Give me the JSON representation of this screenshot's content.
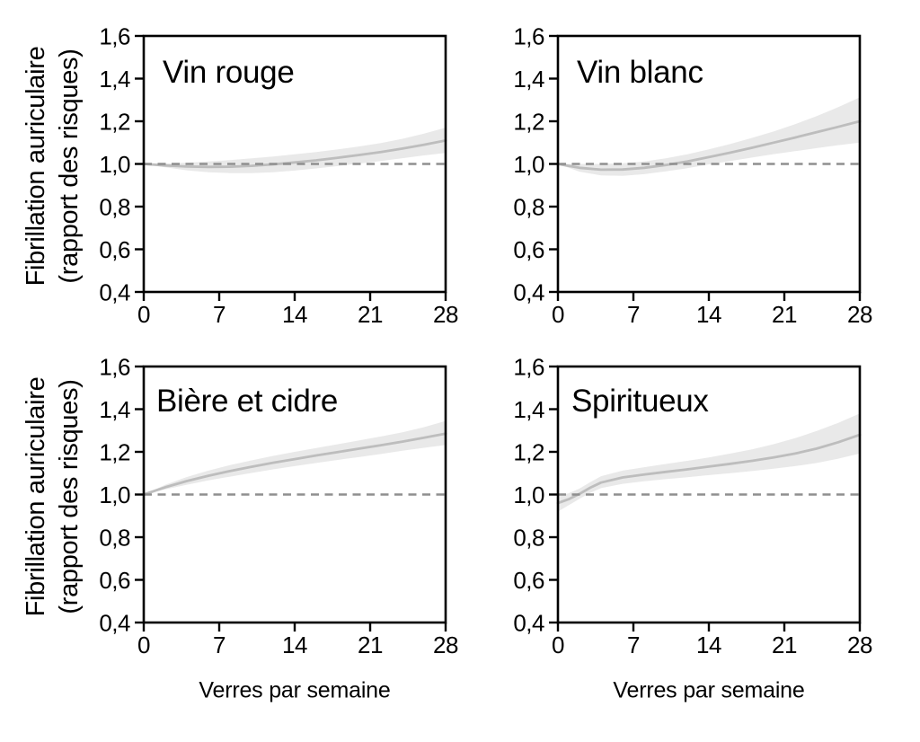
{
  "figure": {
    "y_axis_label_line1": "Fibrillation auriculaire",
    "y_axis_label_line2": "(rapport des risques)",
    "x_axis_label": "Verres par semaine",
    "colors": {
      "band": "#e9e9e9",
      "curve": "#bdbdbd",
      "reference_line": "#8f8f8f",
      "axis": "#000000",
      "text": "#000000",
      "background": "#ffffff"
    }
  },
  "chart_data": [
    {
      "type": "line",
      "title": "Vin rouge",
      "xlabel": "Verres par semaine",
      "ylabel": "Fibrillation auriculaire (rapport des risques)",
      "xlim": [
        0,
        28
      ],
      "ylim": [
        0.4,
        1.6
      ],
      "xticks": [
        0,
        7,
        14,
        21,
        28
      ],
      "xtick_labels": [
        "0",
        "7",
        "14",
        "21",
        "28"
      ],
      "yticks": [
        0.4,
        0.6,
        0.8,
        1.0,
        1.2,
        1.4,
        1.6
      ],
      "ytick_labels": [
        "0,4",
        "0,6",
        "0,8",
        "1,0",
        "1,2",
        "1,4",
        "1,6"
      ],
      "reference_line_y": 1.0,
      "x": [
        0,
        2,
        4,
        6,
        8,
        10,
        12,
        14,
        16,
        18,
        20,
        22,
        24,
        26,
        28
      ],
      "hazard_ratio": [
        1.0,
        0.993,
        0.988,
        0.986,
        0.987,
        0.991,
        0.998,
        1.007,
        1.017,
        1.029,
        1.042,
        1.056,
        1.072,
        1.09,
        1.11
      ],
      "ci_upper": [
        1.0,
        1.002,
        1.006,
        1.012,
        1.018,
        1.026,
        1.035,
        1.045,
        1.056,
        1.068,
        1.082,
        1.098,
        1.118,
        1.142,
        1.17
      ],
      "ci_lower": [
        1.0,
        0.984,
        0.97,
        0.961,
        0.957,
        0.957,
        0.961,
        0.969,
        0.979,
        0.99,
        1.002,
        1.014,
        1.027,
        1.04,
        1.052
      ]
    },
    {
      "type": "line",
      "title": "Vin blanc",
      "xlabel": "Verres par semaine",
      "ylabel": "Fibrillation auriculaire (rapport des risques)",
      "xlim": [
        0,
        28
      ],
      "ylim": [
        0.4,
        1.6
      ],
      "xticks": [
        0,
        7,
        14,
        21,
        28
      ],
      "xtick_labels": [
        "0",
        "7",
        "14",
        "21",
        "28"
      ],
      "yticks": [
        0.4,
        0.6,
        0.8,
        1.0,
        1.2,
        1.4,
        1.6
      ],
      "ytick_labels": [
        "0,4",
        "0,6",
        "0,8",
        "1,0",
        "1,2",
        "1,4",
        "1,6"
      ],
      "reference_line_y": 1.0,
      "x": [
        0,
        2,
        4,
        6,
        8,
        10,
        12,
        14,
        16,
        18,
        20,
        22,
        24,
        26,
        28
      ],
      "hazard_ratio": [
        1.0,
        0.982,
        0.973,
        0.974,
        0.982,
        0.995,
        1.012,
        1.032,
        1.053,
        1.076,
        1.1,
        1.124,
        1.149,
        1.174,
        1.2
      ],
      "ci_upper": [
        1.0,
        1.0,
        1.0,
        1.003,
        1.012,
        1.026,
        1.045,
        1.068,
        1.094,
        1.122,
        1.152,
        1.186,
        1.224,
        1.266,
        1.312
      ],
      "ci_lower": [
        1.0,
        0.964,
        0.946,
        0.944,
        0.952,
        0.965,
        0.98,
        0.998,
        1.014,
        1.03,
        1.046,
        1.06,
        1.074,
        1.088,
        1.1
      ]
    },
    {
      "type": "line",
      "title": "Bière et cidre",
      "xlabel": "Verres par semaine",
      "ylabel": "Fibrillation auriculaire (rapport des risques)",
      "xlim": [
        0,
        28
      ],
      "ylim": [
        0.4,
        1.6
      ],
      "xticks": [
        0,
        7,
        14,
        21,
        28
      ],
      "xtick_labels": [
        "0",
        "7",
        "14",
        "21",
        "28"
      ],
      "yticks": [
        0.4,
        0.6,
        0.8,
        1.0,
        1.2,
        1.4,
        1.6
      ],
      "ytick_labels": [
        "0,4",
        "0,6",
        "0,8",
        "1,0",
        "1,2",
        "1,4",
        "1,6"
      ],
      "reference_line_y": 1.0,
      "x": [
        0,
        2,
        4,
        6,
        8,
        10,
        12,
        14,
        16,
        18,
        20,
        22,
        24,
        26,
        28
      ],
      "hazard_ratio": [
        1.0,
        1.034,
        1.063,
        1.088,
        1.11,
        1.13,
        1.149,
        1.166,
        1.183,
        1.199,
        1.215,
        1.231,
        1.248,
        1.266,
        1.285
      ],
      "ci_upper": [
        1.0,
        1.046,
        1.082,
        1.112,
        1.138,
        1.16,
        1.181,
        1.2,
        1.218,
        1.236,
        1.254,
        1.272,
        1.292,
        1.316,
        1.345
      ],
      "ci_lower": [
        1.0,
        1.024,
        1.046,
        1.066,
        1.084,
        1.101,
        1.118,
        1.133,
        1.148,
        1.162,
        1.176,
        1.19,
        1.205,
        1.219,
        1.232
      ]
    },
    {
      "type": "line",
      "title": "Spiritueux",
      "xlabel": "Verres par semaine",
      "ylabel": "Fibrillation auriculaire (rapport des risques)",
      "xlim": [
        0,
        28
      ],
      "ylim": [
        0.4,
        1.6
      ],
      "xticks": [
        0,
        7,
        14,
        21,
        28
      ],
      "xtick_labels": [
        "0",
        "7",
        "14",
        "21",
        "28"
      ],
      "yticks": [
        0.4,
        0.6,
        0.8,
        1.0,
        1.2,
        1.4,
        1.6
      ],
      "ytick_labels": [
        "0,4",
        "0,6",
        "0,8",
        "1,0",
        "1,2",
        "1,4",
        "1,6"
      ],
      "reference_line_y": 1.0,
      "x": [
        0,
        1,
        2,
        3,
        4,
        6,
        8,
        10,
        12,
        14,
        16,
        18,
        20,
        22,
        24,
        26,
        28
      ],
      "hazard_ratio": [
        0.96,
        0.978,
        1.003,
        1.032,
        1.056,
        1.08,
        1.094,
        1.106,
        1.118,
        1.131,
        1.144,
        1.158,
        1.174,
        1.192,
        1.215,
        1.245,
        1.28
      ],
      "ci_upper": [
        0.995,
        1.006,
        1.028,
        1.058,
        1.086,
        1.112,
        1.128,
        1.143,
        1.158,
        1.174,
        1.192,
        1.212,
        1.236,
        1.264,
        1.298,
        1.336,
        1.38
      ],
      "ci_lower": [
        0.92,
        0.95,
        0.98,
        1.008,
        1.03,
        1.05,
        1.062,
        1.072,
        1.081,
        1.091,
        1.1,
        1.11,
        1.121,
        1.133,
        1.148,
        1.168,
        1.192
      ]
    }
  ]
}
